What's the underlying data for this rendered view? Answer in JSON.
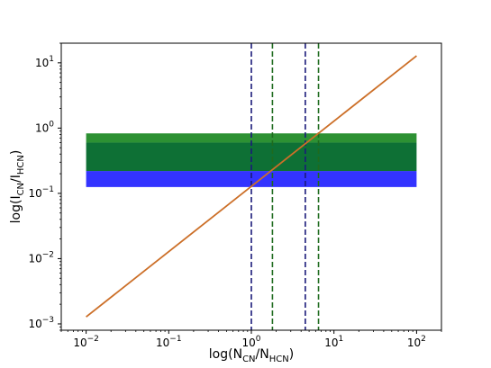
{
  "chart_data": {
    "type": "line",
    "title": "",
    "xlabel": {
      "base": "log(N",
      "sub1": "CN",
      "mid": "/N",
      "sub2": "HCN",
      "end": ")"
    },
    "ylabel": {
      "base": "log(I",
      "sub1": "CN",
      "mid": "/I",
      "sub2": "HCN",
      "end": ")"
    },
    "xscale": "log",
    "yscale": "log",
    "xlim": [
      0.005,
      200
    ],
    "ylim": [
      0.0008,
      20
    ],
    "grid": false,
    "legend": "none",
    "x_ticks": [
      {
        "value": 0.01,
        "mant": "10",
        "exp": "−2"
      },
      {
        "value": 0.1,
        "mant": "10",
        "exp": "−1"
      },
      {
        "value": 1,
        "mant": "10",
        "exp": "0"
      },
      {
        "value": 10,
        "mant": "10",
        "exp": "1"
      },
      {
        "value": 100,
        "mant": "10",
        "exp": "2"
      }
    ],
    "y_ticks": [
      {
        "value": 0.001,
        "mant": "10",
        "exp": "−3"
      },
      {
        "value": 0.01,
        "mant": "10",
        "exp": "−2"
      },
      {
        "value": 0.1,
        "mant": "10",
        "exp": "−1"
      },
      {
        "value": 1,
        "mant": "10",
        "exp": "0"
      },
      {
        "value": 10,
        "mant": "10",
        "exp": "1"
      }
    ],
    "bands": [
      {
        "x_range": [
          0.01,
          100
        ],
        "y_range": [
          0.125,
          0.22
        ],
        "color": "#3333ff"
      },
      {
        "x_range": [
          0.01,
          100
        ],
        "y_range": [
          0.22,
          0.6
        ],
        "color": "#0e7035"
      },
      {
        "x_range": [
          0.01,
          100
        ],
        "y_range": [
          0.6,
          0.83
        ],
        "color": "#2d9133"
      }
    ],
    "vlines": [
      {
        "x": 1.0,
        "color": "#1a1a7a"
      },
      {
        "x": 4.5,
        "color": "#1a1a7a"
      },
      {
        "x": 1.8,
        "color": "#1e6b1e"
      },
      {
        "x": 6.5,
        "color": "#1e6b1e"
      }
    ],
    "series": [
      {
        "x": [
          0.01,
          100
        ],
        "y": [
          0.00128,
          12.8
        ],
        "color": "#cc6f28"
      }
    ]
  }
}
